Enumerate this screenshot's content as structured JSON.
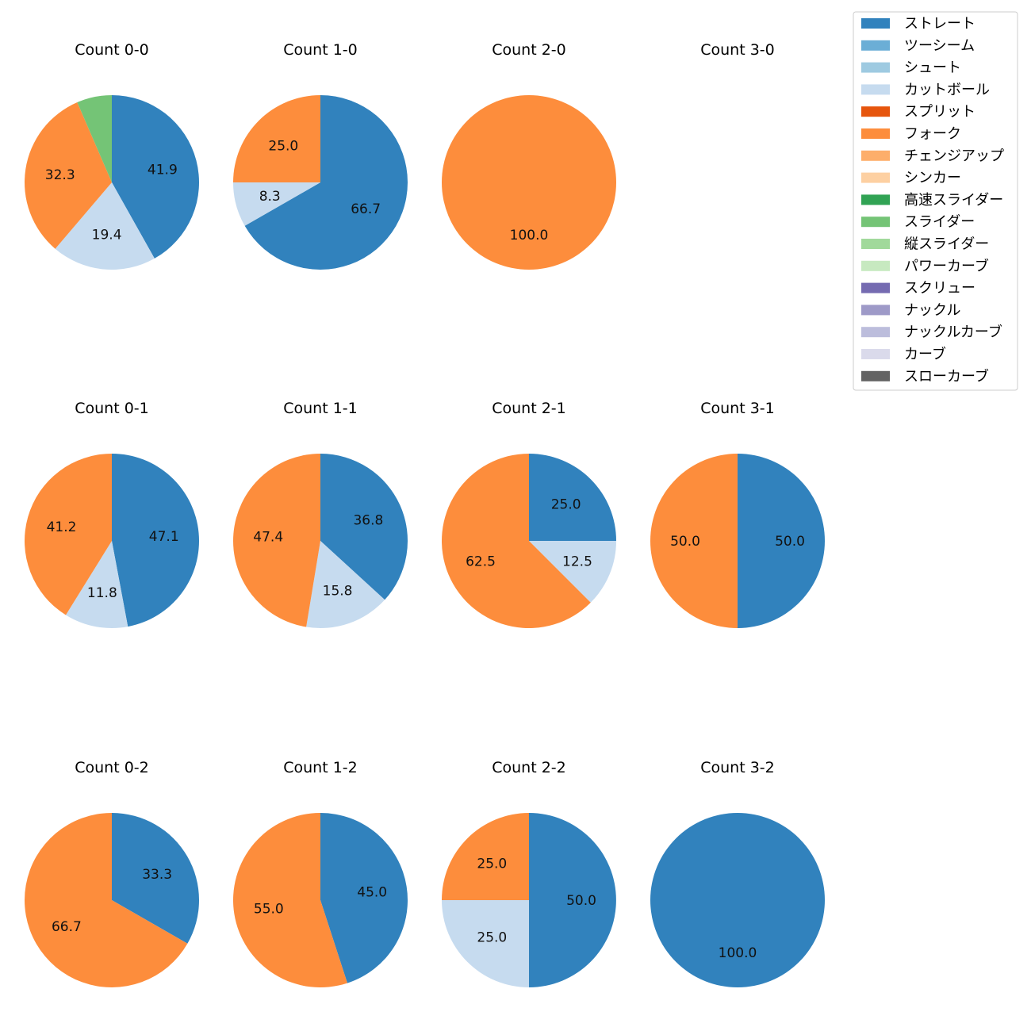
{
  "legend": {
    "entries": [
      {
        "name": "ストレート",
        "color": "#3182bd"
      },
      {
        "name": "ツーシーム",
        "color": "#6baed6"
      },
      {
        "name": "シュート",
        "color": "#9ecae1"
      },
      {
        "name": "カットボール",
        "color": "#c6dbef"
      },
      {
        "name": "スプリット",
        "color": "#e6550d"
      },
      {
        "name": "フォーク",
        "color": "#fd8d3c"
      },
      {
        "name": "チェンジアップ",
        "color": "#fdae6b"
      },
      {
        "name": "シンカー",
        "color": "#fdd0a2"
      },
      {
        "name": "高速スライダー",
        "color": "#31a354"
      },
      {
        "name": "スライダー",
        "color": "#74c476"
      },
      {
        "name": "縦スライダー",
        "color": "#a1d99b"
      },
      {
        "name": "パワーカーブ",
        "color": "#c7e9c0"
      },
      {
        "name": "スクリュー",
        "color": "#756bb1"
      },
      {
        "name": "ナックル",
        "color": "#9e9ac8"
      },
      {
        "name": "ナックルカーブ",
        "color": "#bcbddc"
      },
      {
        "name": "カーブ",
        "color": "#dadaeb"
      },
      {
        "name": "スローカーブ",
        "color": "#636363"
      }
    ]
  },
  "chart_data": [
    {
      "type": "pie",
      "title": "Count 0-0",
      "slices": [
        {
          "label": "ストレート",
          "value": 41.9
        },
        {
          "label": "カットボール",
          "value": 19.4
        },
        {
          "label": "フォーク",
          "value": 32.3
        },
        {
          "label": "スライダー",
          "value": 6.5,
          "show_label": false
        }
      ]
    },
    {
      "type": "pie",
      "title": "Count 1-0",
      "slices": [
        {
          "label": "ストレート",
          "value": 66.7
        },
        {
          "label": "カットボール",
          "value": 8.3
        },
        {
          "label": "フォーク",
          "value": 25.0
        }
      ]
    },
    {
      "type": "pie",
      "title": "Count 2-0",
      "slices": [
        {
          "label": "フォーク",
          "value": 100.0
        }
      ]
    },
    {
      "type": "pie",
      "title": "Count 3-0",
      "slices": []
    },
    {
      "type": "pie",
      "title": "Count 0-1",
      "slices": [
        {
          "label": "ストレート",
          "value": 47.1
        },
        {
          "label": "カットボール",
          "value": 11.8
        },
        {
          "label": "フォーク",
          "value": 41.2
        }
      ]
    },
    {
      "type": "pie",
      "title": "Count 1-1",
      "slices": [
        {
          "label": "ストレート",
          "value": 36.8
        },
        {
          "label": "カットボール",
          "value": 15.8
        },
        {
          "label": "フォーク",
          "value": 47.4
        }
      ]
    },
    {
      "type": "pie",
      "title": "Count 2-1",
      "slices": [
        {
          "label": "ストレート",
          "value": 25.0
        },
        {
          "label": "カットボール",
          "value": 12.5
        },
        {
          "label": "フォーク",
          "value": 62.5
        }
      ]
    },
    {
      "type": "pie",
      "title": "Count 3-1",
      "slices": [
        {
          "label": "ストレート",
          "value": 50.0
        },
        {
          "label": "フォーク",
          "value": 50.0
        }
      ]
    },
    {
      "type": "pie",
      "title": "Count 0-2",
      "slices": [
        {
          "label": "ストレート",
          "value": 33.3
        },
        {
          "label": "フォーク",
          "value": 66.7
        }
      ]
    },
    {
      "type": "pie",
      "title": "Count 1-2",
      "slices": [
        {
          "label": "ストレート",
          "value": 45.0
        },
        {
          "label": "フォーク",
          "value": 55.0
        }
      ]
    },
    {
      "type": "pie",
      "title": "Count 2-2",
      "slices": [
        {
          "label": "ストレート",
          "value": 50.0
        },
        {
          "label": "カットボール",
          "value": 25.0
        },
        {
          "label": "フォーク",
          "value": 25.0
        }
      ]
    },
    {
      "type": "pie",
      "title": "Count 3-2",
      "slices": [
        {
          "label": "ストレート",
          "value": 100.0
        }
      ]
    }
  ]
}
